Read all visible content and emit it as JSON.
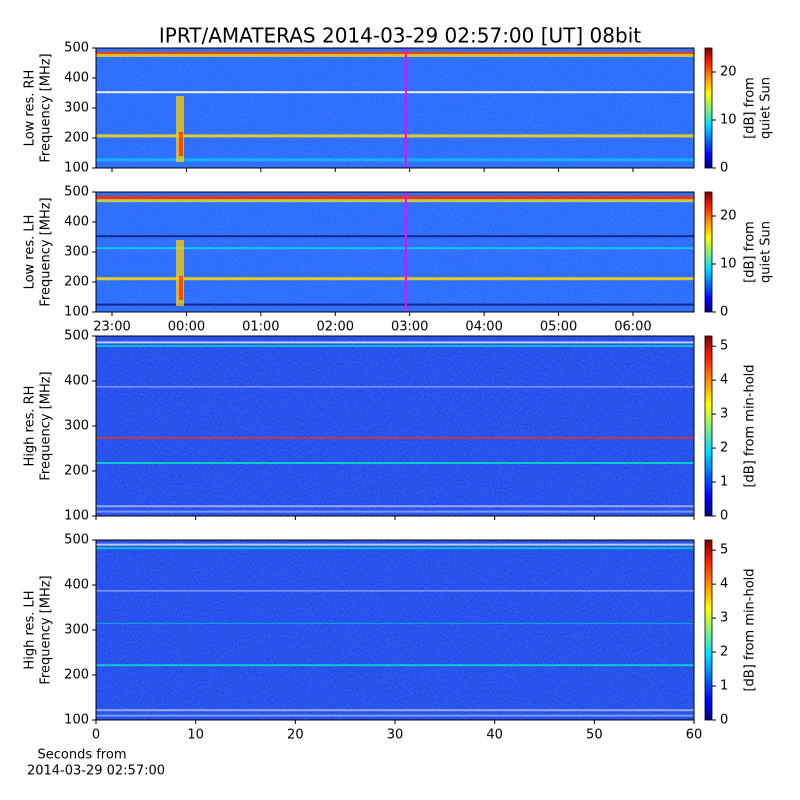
{
  "title": "IPRT/AMATERAS 2014-03-29 02:57:00 [UT]   08bit",
  "chart_data": [
    {
      "type": "heatmap",
      "ylabel": [
        "Low res. RH",
        "Frequency [MHz]"
      ],
      "ylim": [
        100,
        500
      ],
      "yticks": [
        100,
        200,
        300,
        400,
        500
      ],
      "xlim": [
        22.785,
        30.82
      ],
      "xticks": [
        23,
        24,
        25,
        26,
        27,
        28,
        29,
        30
      ],
      "cursor": 26.95,
      "cursor_color": "#ff00ff",
      "clim": [
        0,
        25
      ],
      "cticks": [
        0,
        10,
        20
      ],
      "clabel": [
        "[dB] from",
        "quiet Sun"
      ],
      "colormap": "jet"
    },
    {
      "type": "heatmap",
      "ylabel": [
        "Low res. LH",
        "Frequency [MHz]"
      ],
      "ylim": [
        100,
        500
      ],
      "yticks": [
        100,
        200,
        300,
        400,
        500
      ],
      "xlim": [
        22.785,
        30.82
      ],
      "xticks": [
        {
          "value": 23,
          "label": "23:00"
        },
        {
          "value": 24,
          "label": "00:00"
        },
        {
          "value": 25,
          "label": "01:00"
        },
        {
          "value": 26,
          "label": "02:00"
        },
        {
          "value": 27,
          "label": "03:00"
        },
        {
          "value": 28,
          "label": "04:00"
        },
        {
          "value": 29,
          "label": "05:00"
        },
        {
          "value": 30,
          "label": "06:00"
        }
      ],
      "cursor": 26.95,
      "cursor_color": "#ff00ff",
      "clim": [
        0,
        25
      ],
      "cticks": [
        0,
        10,
        20
      ],
      "clabel": [
        "[dB] from",
        "quiet Sun"
      ],
      "colormap": "jet"
    },
    {
      "type": "heatmap",
      "ylabel": [
        "High res. RH",
        "Frequency [MHz]"
      ],
      "ylim": [
        100,
        500
      ],
      "yticks": [
        100,
        200,
        300,
        400,
        500
      ],
      "xlim": [
        0,
        60
      ],
      "xticks": [
        0,
        10,
        20,
        30,
        40,
        50,
        60
      ],
      "clim": [
        0,
        5.3
      ],
      "cticks": [
        0,
        1,
        2,
        3,
        4,
        5
      ],
      "clabel": [
        "[dB] from min-hold"
      ],
      "colormap": "jet"
    },
    {
      "type": "heatmap",
      "ylabel": [
        "High res. LH",
        "Frequency [MHz]"
      ],
      "ylim": [
        100,
        500
      ],
      "yticks": [
        100,
        200,
        300,
        400,
        500
      ],
      "xlim": [
        0,
        60
      ],
      "xticks": [
        {
          "value": 0,
          "label": "0"
        },
        {
          "value": 10,
          "label": "10"
        },
        {
          "value": 20,
          "label": "20"
        },
        {
          "value": 30,
          "label": "30"
        },
        {
          "value": 40,
          "label": "40"
        },
        {
          "value": 50,
          "label": "50"
        },
        {
          "value": 60,
          "label": "60"
        }
      ],
      "xlabel": [
        "Seconds from",
        "2014-03-29 02:57:00"
      ],
      "clim": [
        0,
        5.3
      ],
      "cticks": [
        0,
        1,
        2,
        3,
        4,
        5
      ],
      "clabel": [
        "[dB] from min-hold"
      ],
      "colormap": "jet"
    }
  ]
}
